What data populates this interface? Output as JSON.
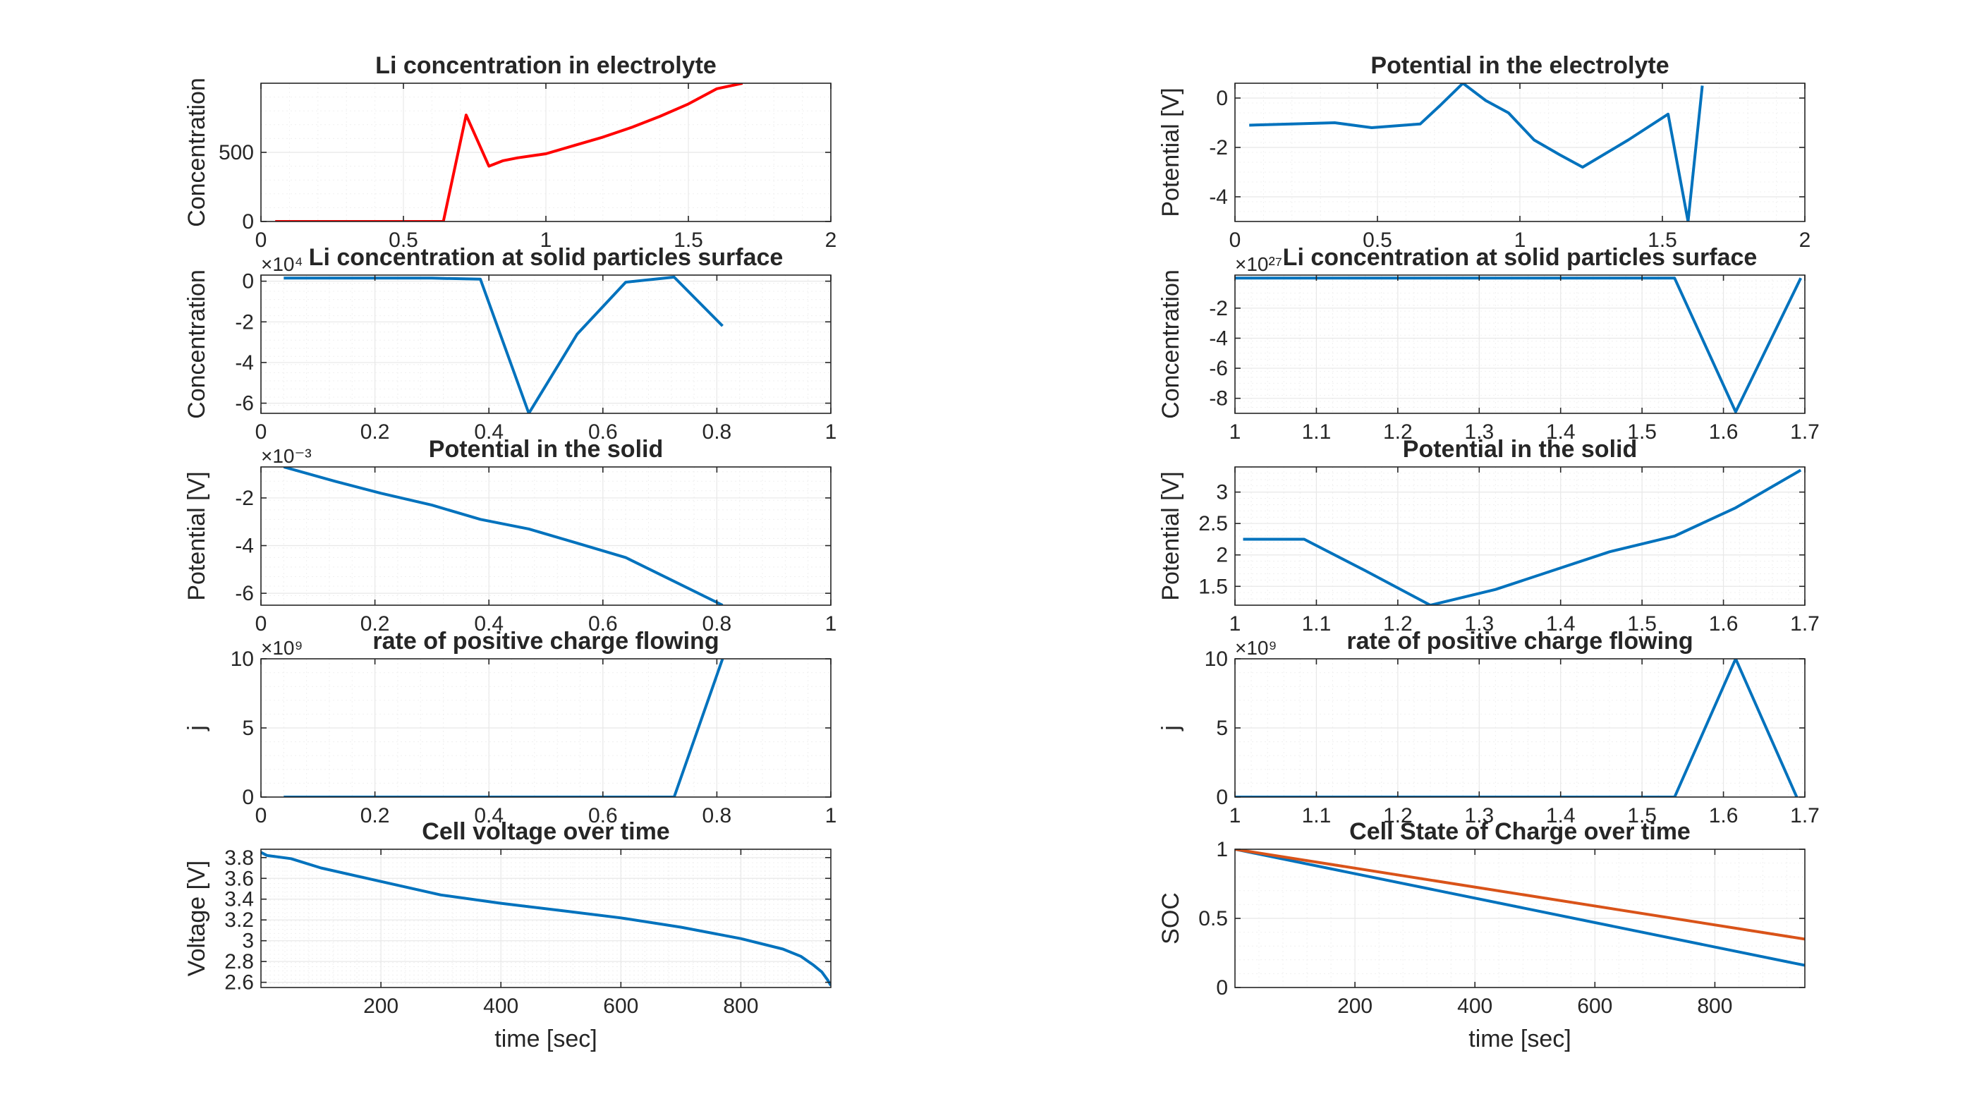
{
  "figure": {
    "background": "#ffffff",
    "axis_color": "#262626",
    "grid_color": "#e8e8e8"
  },
  "chart_data": [
    {
      "id": "li-conc-electrolyte",
      "type": "line",
      "title": "Li concentration in electrolyte",
      "xlabel": "",
      "ylabel": "Concentration",
      "xlim": [
        0,
        2
      ],
      "ylim": [
        0,
        1000
      ],
      "xticks": [
        0,
        0.5,
        1,
        1.5,
        2
      ],
      "xtick_labels": [
        "0",
        "0.5",
        "1",
        "1.5",
        "2"
      ],
      "yticks": [
        0,
        500
      ],
      "ytick_labels": [
        "0",
        "500"
      ],
      "x_exponent": "",
      "y_exponent": "",
      "series": [
        {
          "color": "#ff0000",
          "x": [
            0.05,
            0.1,
            0.2,
            0.3,
            0.4,
            0.5,
            0.55,
            0.64,
            0.72,
            0.8,
            0.85,
            0.9,
            1.0,
            1.1,
            1.2,
            1.3,
            1.4,
            1.5,
            1.6,
            1.69
          ],
          "y": [
            0,
            0,
            0,
            0,
            0,
            0,
            0,
            0,
            770,
            400,
            440,
            460,
            490,
            550,
            610,
            680,
            760,
            850,
            960,
            1000
          ]
        }
      ]
    },
    {
      "id": "potential-electrolyte",
      "type": "line",
      "title": "Potential in the electrolyte",
      "xlabel": "",
      "ylabel": "Potential [V]",
      "xlim": [
        0,
        2
      ],
      "ylim": [
        -5,
        0.6
      ],
      "xticks": [
        0,
        0.5,
        1,
        1.5,
        2
      ],
      "xtick_labels": [
        "0",
        "0.5",
        "1",
        "1.5",
        "2"
      ],
      "yticks": [
        -4,
        -2,
        0
      ],
      "ytick_labels": [
        "-4",
        "-2",
        "0"
      ],
      "x_exponent": "",
      "y_exponent": "",
      "series": [
        {
          "color": "#0072bd",
          "x": [
            0.05,
            0.2,
            0.35,
            0.48,
            0.65,
            0.72,
            0.8,
            0.88,
            0.96,
            1.05,
            1.14,
            1.22,
            1.38,
            1.52,
            1.59,
            1.64
          ],
          "y": [
            -1.1,
            -1.05,
            -1.0,
            -1.2,
            -1.05,
            -0.3,
            0.6,
            -0.1,
            -0.6,
            -1.7,
            -2.3,
            -2.8,
            -1.7,
            -0.65,
            -5.0,
            0.5
          ]
        }
      ]
    },
    {
      "id": "li-conc-solid-surface-left",
      "type": "line",
      "title": "Li concentration at solid particles surface",
      "xlabel": "",
      "ylabel": "Concentration",
      "xlim": [
        0,
        1
      ],
      "ylim": [
        -6.5,
        0.3
      ],
      "xticks": [
        0,
        0.2,
        0.4,
        0.6,
        0.8,
        1
      ],
      "xtick_labels": [
        "0",
        "0.2",
        "0.4",
        "0.6",
        "0.8",
        "1"
      ],
      "yticks": [
        -6,
        -4,
        -2,
        0
      ],
      "ytick_labels": [
        "-6",
        "-4",
        "-2",
        "0"
      ],
      "x_exponent": "",
      "y_exponent": "×10⁴",
      "series": [
        {
          "color": "#0072bd",
          "x": [
            0.04,
            0.2,
            0.3,
            0.385,
            0.47,
            0.555,
            0.64,
            0.725,
            0.81
          ],
          "y": [
            0.15,
            0.15,
            0.15,
            0.1,
            -6.5,
            -2.6,
            -0.05,
            0.2,
            -2.2
          ]
        }
      ]
    },
    {
      "id": "li-conc-solid-surface-right",
      "type": "line",
      "title": "Li concentration at solid particles surface",
      "xlabel": "",
      "ylabel": "Concentration",
      "xlim": [
        1,
        1.7
      ],
      "ylim": [
        -9,
        0.2
      ],
      "xticks": [
        1,
        1.1,
        1.2,
        1.3,
        1.4,
        1.5,
        1.6,
        1.7
      ],
      "xtick_labels": [
        "1",
        "1.1",
        "1.2",
        "1.3",
        "1.4",
        "1.5",
        "1.6",
        "1.7"
      ],
      "yticks": [
        -8,
        -6,
        -4,
        -2
      ],
      "ytick_labels": [
        "-8",
        "-6",
        "-4",
        "-2"
      ],
      "x_exponent": "",
      "y_exponent": "×10²⁷",
      "series": [
        {
          "color": "#0072bd",
          "x": [
            1.0,
            1.1,
            1.2,
            1.3,
            1.4,
            1.5,
            1.54,
            1.615,
            1.695
          ],
          "y": [
            0,
            0,
            0,
            0,
            0,
            0,
            0,
            -8.9,
            0
          ]
        }
      ]
    },
    {
      "id": "potential-solid-left",
      "type": "line",
      "title": "Potential in the solid",
      "xlabel": "",
      "ylabel": "Potential [V]",
      "xlim": [
        0,
        1
      ],
      "ylim": [
        -6.5,
        -0.7
      ],
      "xticks": [
        0,
        0.2,
        0.4,
        0.6,
        0.8,
        1
      ],
      "xtick_labels": [
        "0",
        "0.2",
        "0.4",
        "0.6",
        "0.8",
        "1"
      ],
      "yticks": [
        -6,
        -4,
        -2
      ],
      "ytick_labels": [
        "-6",
        "-4",
        "-2"
      ],
      "x_exponent": "",
      "y_exponent": "×10⁻³",
      "series": [
        {
          "color": "#0072bd",
          "x": [
            0.04,
            0.13,
            0.21,
            0.3,
            0.385,
            0.47,
            0.555,
            0.64,
            0.725,
            0.81
          ],
          "y": [
            -0.7,
            -1.3,
            -1.8,
            -2.3,
            -2.9,
            -3.3,
            -3.9,
            -4.5,
            -5.5,
            -6.5
          ]
        }
      ]
    },
    {
      "id": "potential-solid-right",
      "type": "line",
      "title": "Potential in the solid",
      "xlabel": "",
      "ylabel": "Potential [V]",
      "xlim": [
        1,
        1.7
      ],
      "ylim": [
        1.2,
        3.4
      ],
      "xticks": [
        1,
        1.1,
        1.2,
        1.3,
        1.4,
        1.5,
        1.6,
        1.7
      ],
      "xtick_labels": [
        "1",
        "1.1",
        "1.2",
        "1.3",
        "1.4",
        "1.5",
        "1.6",
        "1.7"
      ],
      "yticks": [
        1.5,
        2,
        2.5,
        3
      ],
      "ytick_labels": [
        "1.5",
        "2",
        "2.5",
        "3"
      ],
      "x_exponent": "",
      "y_exponent": "",
      "series": [
        {
          "color": "#0072bd",
          "x": [
            1.01,
            1.085,
            1.16,
            1.24,
            1.32,
            1.39,
            1.46,
            1.54,
            1.615,
            1.695
          ],
          "y": [
            2.25,
            2.25,
            1.75,
            1.2,
            1.45,
            1.75,
            2.05,
            2.3,
            2.75,
            3.35
          ]
        }
      ]
    },
    {
      "id": "rate-positive-charge-left",
      "type": "line",
      "title": "rate of positive charge flowing",
      "xlabel": "",
      "ylabel": "j",
      "xlim": [
        0,
        1
      ],
      "ylim": [
        0,
        10
      ],
      "xticks": [
        0,
        0.2,
        0.4,
        0.6,
        0.8,
        1
      ],
      "xtick_labels": [
        "0",
        "0.2",
        "0.4",
        "0.6",
        "0.8",
        "1"
      ],
      "yticks": [
        0,
        5,
        10
      ],
      "ytick_labels": [
        "0",
        "5",
        "10"
      ],
      "x_exponent": "",
      "y_exponent": "×10⁹",
      "series": [
        {
          "color": "#0072bd",
          "x": [
            0.04,
            0.2,
            0.4,
            0.6,
            0.725,
            0.81
          ],
          "y": [
            0,
            0,
            0,
            0,
            0,
            10
          ]
        }
      ]
    },
    {
      "id": "rate-positive-charge-right",
      "type": "line",
      "title": "rate of positive charge flowing",
      "xlabel": "",
      "ylabel": "j",
      "xlim": [
        1,
        1.7
      ],
      "ylim": [
        0,
        10
      ],
      "xticks": [
        1,
        1.1,
        1.2,
        1.3,
        1.4,
        1.5,
        1.6,
        1.7
      ],
      "xtick_labels": [
        "1",
        "1.1",
        "1.2",
        "1.3",
        "1.4",
        "1.5",
        "1.6",
        "1.7"
      ],
      "yticks": [
        0,
        5,
        10
      ],
      "ytick_labels": [
        "0",
        "5",
        "10"
      ],
      "x_exponent": "",
      "y_exponent": "×10⁹",
      "series": [
        {
          "color": "#0072bd",
          "x": [
            1.0,
            1.2,
            1.4,
            1.54,
            1.615,
            1.69
          ],
          "y": [
            0,
            0,
            0,
            0,
            10,
            0
          ]
        }
      ]
    },
    {
      "id": "cell-voltage",
      "type": "line",
      "title": "Cell voltage over time",
      "xlabel": "time [sec]",
      "ylabel": "Voltage [V]",
      "xlim": [
        0,
        950
      ],
      "ylim": [
        2.55,
        3.88
      ],
      "xticks": [
        200,
        400,
        600,
        800
      ],
      "xtick_labels": [
        "200",
        "400",
        "600",
        "800"
      ],
      "yticks": [
        2.6,
        2.8,
        3,
        3.2,
        3.4,
        3.6,
        3.8
      ],
      "ytick_labels": [
        "2.6",
        "2.8",
        "3",
        "3.2",
        "3.4",
        "3.6",
        "3.8"
      ],
      "x_exponent": "",
      "y_exponent": "",
      "series": [
        {
          "color": "#0072bd",
          "x": [
            0,
            10,
            50,
            100,
            200,
            300,
            400,
            500,
            600,
            700,
            800,
            870,
            900,
            920,
            935,
            945,
            950
          ],
          "y": [
            3.85,
            3.82,
            3.79,
            3.7,
            3.57,
            3.44,
            3.36,
            3.29,
            3.22,
            3.13,
            3.02,
            2.92,
            2.85,
            2.77,
            2.7,
            2.62,
            2.57
          ]
        }
      ]
    },
    {
      "id": "cell-soc",
      "type": "line",
      "title": "Cell State of Charge over time",
      "xlabel": "time [sec]",
      "ylabel": "SOC",
      "xlim": [
        0,
        950
      ],
      "ylim": [
        0,
        1
      ],
      "xticks": [
        200,
        400,
        600,
        800
      ],
      "xtick_labels": [
        "200",
        "400",
        "600",
        "800"
      ],
      "yticks": [
        0,
        0.5,
        1
      ],
      "ytick_labels": [
        "0",
        "0.5",
        "1"
      ],
      "x_exponent": "",
      "y_exponent": "",
      "series": [
        {
          "color": "#0072bd",
          "x": [
            0,
            950
          ],
          "y": [
            1,
            0.16
          ]
        },
        {
          "color": "#d95319",
          "x": [
            0,
            950
          ],
          "y": [
            1,
            0.35
          ]
        }
      ]
    }
  ]
}
